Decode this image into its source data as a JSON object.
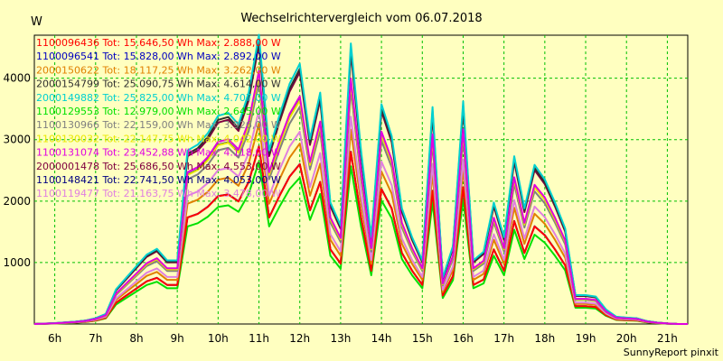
{
  "chart_data": {
    "type": "line",
    "title": "Wechselrichtervergleich vom 06.07.2018",
    "ylabel": "W",
    "footer": "SunnyReport pinxit",
    "ylim": [
      0,
      4700
    ],
    "yticks": [
      1000,
      2000,
      3000,
      4000
    ],
    "x_range": [
      5.5,
      21.5
    ],
    "xticks": [
      {
        "value": 6,
        "label": "6h"
      },
      {
        "value": 7,
        "label": "7h"
      },
      {
        "value": 8,
        "label": "8h"
      },
      {
        "value": 9,
        "label": "9h"
      },
      {
        "value": 10,
        "label": "10h"
      },
      {
        "value": 11,
        "label": "11h"
      },
      {
        "value": 12,
        "label": "12h"
      },
      {
        "value": 13,
        "label": "13h"
      },
      {
        "value": 14,
        "label": "14h"
      },
      {
        "value": 15,
        "label": "15h"
      },
      {
        "value": 16,
        "label": "16h"
      },
      {
        "value": 17,
        "label": "17h"
      },
      {
        "value": 18,
        "label": "18h"
      },
      {
        "value": 19,
        "label": "19h"
      },
      {
        "value": 20,
        "label": "20h"
      },
      {
        "value": 21,
        "label": "21h"
      }
    ],
    "grid": true,
    "legend_position": "top-left",
    "x": [
      5.5,
      6.0,
      6.5,
      6.75,
      7.0,
      7.25,
      7.5,
      7.75,
      8.0,
      8.25,
      8.5,
      8.75,
      9.0,
      9.25,
      9.5,
      9.75,
      10.0,
      10.25,
      10.5,
      10.75,
      11.0,
      11.25,
      11.5,
      11.75,
      12.0,
      12.25,
      12.5,
      12.75,
      13.0,
      13.25,
      13.5,
      13.75,
      14.0,
      14.25,
      14.5,
      14.75,
      15.0,
      15.25,
      15.5,
      15.75,
      16.0,
      16.25,
      16.5,
      16.75,
      17.0,
      17.25,
      17.5,
      17.75,
      18.0,
      18.25,
      18.5,
      18.75,
      19.0,
      19.25,
      19.5,
      19.75,
      20.0,
      20.25,
      20.5,
      20.75,
      21.0,
      21.25,
      21.5
    ],
    "shape": [
      0,
      0.003,
      0.008,
      0.012,
      0.02,
      0.035,
      0.12,
      0.16,
      0.2,
      0.24,
      0.26,
      0.22,
      0.22,
      0.6,
      0.62,
      0.66,
      0.72,
      0.73,
      0.69,
      0.8,
      1.0,
      0.6,
      0.72,
      0.83,
      0.9,
      0.64,
      0.8,
      0.42,
      0.34,
      0.97,
      0.6,
      0.3,
      0.76,
      0.65,
      0.4,
      0.3,
      0.22,
      0.75,
      0.16,
      0.27,
      0.77,
      0.22,
      0.25,
      0.42,
      0.3,
      0.58,
      0.4,
      0.55,
      0.5,
      0.42,
      0.33,
      0.1,
      0.1,
      0.095,
      0.05,
      0.025,
      0.022,
      0.02,
      0.01,
      0.005,
      0.002,
      0,
      0
    ],
    "series": [
      {
        "name": "1100096436",
        "legend": "1100096436 Tot: 15.646,50 Wh Max: 2.888,00 W",
        "color": "#ff0000",
        "total_wh": 15646.5,
        "max_w": 2888.0
      },
      {
        "name": "1100096541",
        "legend": "1100096541 Tot: 15.828,00 Wh Max: 2.892,00 W",
        "color": "#0000c0",
        "total_wh": 15828.0,
        "max_w": 2892.0
      },
      {
        "name": "2000150622",
        "legend": "2000150622 Tot: 18.117,25 Wh Max: 3.262,00 W",
        "color": "#e08000",
        "total_wh": 18117.25,
        "max_w": 3262.0
      },
      {
        "name": "2000154799",
        "legend": "2000154799 Tot: 25.090,75 Wh Max: 4.614,00 W",
        "color": "#303030",
        "total_wh": 25090.75,
        "max_w": 4614.0
      },
      {
        "name": "2000149882",
        "legend": "2000149882 Tot: 25.825,00 Wh Max: 4.707,00 W",
        "color": "#00d0d0",
        "total_wh": 25825.0,
        "max_w": 4707.0
      },
      {
        "name": "1100129553",
        "legend": "1100129553 Tot: 12.979,00 Wh Max: 2.645,00 W",
        "color": "#00e000",
        "total_wh": 12979.0,
        "max_w": 2645.0
      },
      {
        "name": "1100130966",
        "legend": "1100130966 Tot: 22.159,00 Wh Max: 3.926,00 W",
        "color": "#808080",
        "total_wh": 22159.0,
        "max_w": 3926.0
      },
      {
        "name": "1100130032",
        "legend": "1100130032 Tot: 22.147,75 Wh Max: 4.042,00 W",
        "color": "#e8e800",
        "total_wh": 22147.75,
        "max_w": 4042.0
      },
      {
        "name": "1100131074",
        "legend": "1100131074 Tot: 23.452,88 Wh Max: 4.118,00 W",
        "color": "#e000e0",
        "total_wh": 23452.88,
        "max_w": 4118.0
      },
      {
        "name": "2000001478",
        "legend": "2000001478 Tot: 25.686,50 Wh Max: 4.553,00 W",
        "color": "#800040",
        "total_wh": 25686.5,
        "max_w": 4553.0
      },
      {
        "name": "1100148421",
        "legend": "1100148421 Tot: 22.741,50 Wh Max: 4.053,00 W",
        "color": "#000080",
        "total_wh": 22741.5,
        "max_w": 4053.0
      },
      {
        "name": "1100119477",
        "legend": "1100119477 Tot: 21.163,75 Wh Max: 3.478,00 W",
        "color": "#e080e0",
        "total_wh": 21163.75,
        "max_w": 3478.0
      }
    ]
  }
}
